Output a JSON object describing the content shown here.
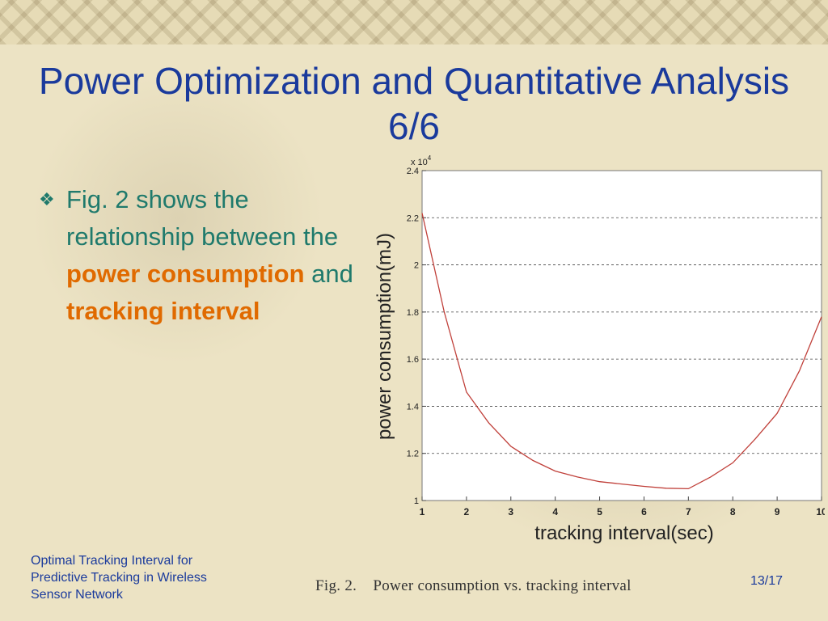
{
  "slide": {
    "title": "Power Optimization and Quantitative Analysis 6/6",
    "bullet": {
      "marker": "❖",
      "text_1": "Fig. 2 shows the relationship between the ",
      "hl_1": "power consumption",
      "text_2": " and ",
      "hl_2": "tracking interval"
    },
    "caption": "Fig. 2.    Power consumption vs. tracking interval",
    "footer": "Optimal Tracking Interval for Predictive Tracking in Wireless Sensor Network",
    "page": "13/17",
    "colors": {
      "title": "#1a3a9c",
      "bullet": "#1f7a6c",
      "highlight": "#e06a00",
      "curve": "#c0403a"
    }
  },
  "chart_data": {
    "type": "line",
    "xlabel": "tracking interval(sec)",
    "ylabel": "power consumption(mJ)",
    "y_multiplier": "x 10",
    "y_exponent": "4",
    "xlim": [
      1,
      10
    ],
    "ylim": [
      1,
      2.4
    ],
    "xticks": [
      1,
      2,
      3,
      4,
      5,
      6,
      7,
      8,
      9,
      10
    ],
    "yticks": [
      1,
      1.2,
      1.4,
      1.6,
      1.8,
      2,
      2.2,
      2.4
    ],
    "grid": "horizontal-dashed",
    "series": [
      {
        "x": [
          1,
          1.5,
          2,
          2.5,
          3,
          3.5,
          4,
          4.5,
          5,
          5.5,
          6,
          6.5,
          7,
          7.5,
          8,
          8.5,
          9,
          9.5,
          10
        ],
        "y": [
          2.22,
          1.8,
          1.46,
          1.33,
          1.23,
          1.17,
          1.125,
          1.1,
          1.08,
          1.07,
          1.06,
          1.052,
          1.05,
          1.1,
          1.16,
          1.26,
          1.37,
          1.55,
          1.78
        ]
      }
    ]
  }
}
